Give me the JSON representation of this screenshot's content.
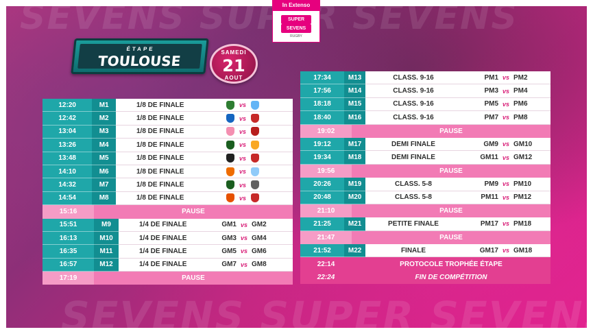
{
  "colors": {
    "teal": "#1fa7a9",
    "teal_dark": "#128e91",
    "pink": "#f27bb5",
    "magenta": "#d7297e",
    "vs": "#d81b76"
  },
  "background_text": {
    "top": "SEVENS SUPER SEVENS",
    "bottom": "SEVENS SUPER SEVENS"
  },
  "logo": {
    "top": "In Extenso",
    "line1": "SUPER",
    "line2": "SEVENS",
    "line3": "RUGBY"
  },
  "banner": {
    "small": "ÉTAPE",
    "city": "TOULOUSE"
  },
  "date": {
    "day_name": "SAMEDI",
    "day": "21",
    "month": "AOUT"
  },
  "left_rows": [
    {
      "type": "match",
      "time": "12:20",
      "code": "M1",
      "round": "1/8 DE FINALE",
      "logos": [
        "#2e7d32",
        "#64b5f6"
      ]
    },
    {
      "type": "match",
      "time": "12:42",
      "code": "M2",
      "round": "1/8 DE FINALE",
      "logos": [
        "#1565c0",
        "#c62828"
      ]
    },
    {
      "type": "match",
      "time": "13:04",
      "code": "M3",
      "round": "1/8 DE FINALE",
      "logos": [
        "#f48fb1",
        "#b71c1c"
      ]
    },
    {
      "type": "match",
      "time": "13:26",
      "code": "M4",
      "round": "1/8 DE FINALE",
      "logos": [
        "#1b5e20",
        "#f9a825"
      ]
    },
    {
      "type": "match",
      "time": "13:48",
      "code": "M5",
      "round": "1/8 DE FINALE",
      "logos": [
        "#212121",
        "#c62828"
      ]
    },
    {
      "type": "match",
      "time": "14:10",
      "code": "M6",
      "round": "1/8 DE FINALE",
      "logos": [
        "#ef6c00",
        "#90caf9"
      ]
    },
    {
      "type": "match",
      "time": "14:32",
      "code": "M7",
      "round": "1/8 DE FINALE",
      "logos": [
        "#1b5e20",
        "#616161"
      ]
    },
    {
      "type": "match",
      "time": "14:54",
      "code": "M8",
      "round": "1/8 DE FINALE",
      "logos": [
        "#e65100",
        "#c62828"
      ]
    },
    {
      "type": "pause",
      "time": "15:16",
      "label": "PAUSE"
    },
    {
      "type": "match",
      "time": "15:51",
      "code": "M9",
      "round": "1/4 DE FINALE",
      "t1": "GM1",
      "vs": "vs",
      "t2": "GM2"
    },
    {
      "type": "match",
      "time": "16:13",
      "code": "M10",
      "round": "1/4 DE FINALE",
      "t1": "GM3",
      "vs": "vs",
      "t2": "GM4"
    },
    {
      "type": "match",
      "time": "16:35",
      "code": "M11",
      "round": "1/4 DE FINALE",
      "t1": "GM5",
      "vs": "vs",
      "t2": "GM6"
    },
    {
      "type": "match",
      "time": "16:57",
      "code": "M12",
      "round": "1/4 DE FINALE",
      "t1": "GM7",
      "vs": "vs",
      "t2": "GM8"
    },
    {
      "type": "pause",
      "time": "17:19",
      "label": "PAUSE"
    }
  ],
  "right_rows": [
    {
      "type": "match",
      "time": "17:34",
      "code": "M13",
      "round": "CLASS. 9-16",
      "t1": "PM1",
      "vs": "vs",
      "t2": "PM2"
    },
    {
      "type": "match",
      "time": "17:56",
      "code": "M14",
      "round": "CLASS. 9-16",
      "t1": "PM3",
      "vs": "vs",
      "t2": "PM4"
    },
    {
      "type": "match",
      "time": "18:18",
      "code": "M15",
      "round": "CLASS. 9-16",
      "t1": "PM5",
      "vs": "vs",
      "t2": "PM6"
    },
    {
      "type": "match",
      "time": "18:40",
      "code": "M16",
      "round": "CLASS. 9-16",
      "t1": "PM7",
      "vs": "vs",
      "t2": "PM8"
    },
    {
      "type": "pause",
      "time": "19:02",
      "label": "PAUSE"
    },
    {
      "type": "match",
      "time": "19:12",
      "code": "M17",
      "round": "DEMI FINALE",
      "t1": "GM9",
      "vs": "vs",
      "t2": "GM10"
    },
    {
      "type": "match",
      "time": "19:34",
      "code": "M18",
      "round": "DEMI FINALE",
      "t1": "GM11",
      "vs": "vs",
      "t2": "GM12"
    },
    {
      "type": "pause",
      "time": "19:56",
      "label": "PAUSE"
    },
    {
      "type": "match",
      "time": "20:26",
      "code": "M19",
      "round": "CLASS. 5-8",
      "t1": "PM9",
      "vs": "vs",
      "t2": "PM10"
    },
    {
      "type": "match",
      "time": "20:48",
      "code": "M20",
      "round": "CLASS. 5-8",
      "t1": "PM11",
      "vs": "vs",
      "t2": "PM12"
    },
    {
      "type": "pause",
      "time": "21:10",
      "label": "PAUSE"
    },
    {
      "type": "match",
      "time": "21:25",
      "code": "M21",
      "round": "PETITE FINALE",
      "t1": "PM17",
      "vs": "vs",
      "t2": "PM18"
    },
    {
      "type": "pause",
      "time": "21:47",
      "label": "PAUSE"
    },
    {
      "type": "match",
      "time": "21:52",
      "code": "M22",
      "round": "FINALE",
      "t1": "GM17",
      "vs": "vs",
      "t2": "GM18"
    },
    {
      "type": "event",
      "time": "22:14",
      "label": "PROTOCOLE TROPHÉE ÉTAPE"
    },
    {
      "type": "event_italic",
      "time": "22:24",
      "label": "FIN DE COMPÉTITION"
    }
  ]
}
